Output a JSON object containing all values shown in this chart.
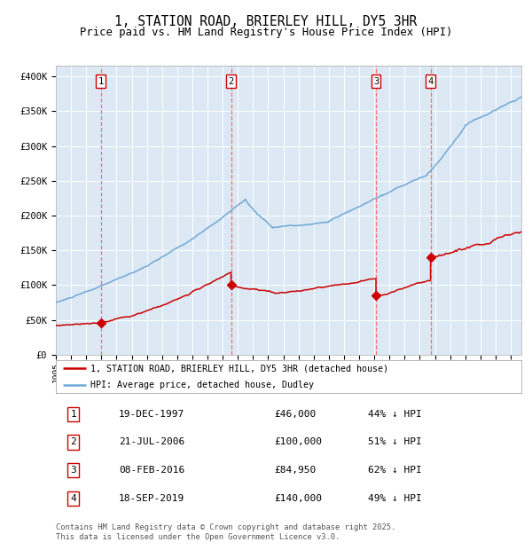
{
  "title": "1, STATION ROAD, BRIERLEY HILL, DY5 3HR",
  "subtitle": "Price paid vs. HM Land Registry's House Price Index (HPI)",
  "ylabel_ticks": [
    "£0",
    "£50K",
    "£100K",
    "£150K",
    "£200K",
    "£250K",
    "£300K",
    "£350K",
    "£400K"
  ],
  "ytick_vals": [
    0,
    50000,
    100000,
    150000,
    200000,
    250000,
    300000,
    350000,
    400000
  ],
  "ylim": [
    0,
    415000
  ],
  "plot_bg_color": "#dce9f5",
  "hpi_line_color": "#6fa8d6",
  "price_line_color": "#cc0000",
  "marker_color": "#cc0000",
  "vline_color": "#ff5555",
  "legend_label_red": "1, STATION ROAD, BRIERLEY HILL, DY5 3HR (detached house)",
  "legend_label_blue": "HPI: Average price, detached house, Dudley",
  "transactions": [
    {
      "num": 1,
      "date_label": "19-DEC-1997",
      "price": 46000,
      "pct": "44%",
      "x_year": 1997.97
    },
    {
      "num": 2,
      "date_label": "21-JUL-2006",
      "price": 100000,
      "pct": "51%",
      "x_year": 2006.55
    },
    {
      "num": 3,
      "date_label": "08-FEB-2016",
      "price": 84950,
      "pct": "62%",
      "x_year": 2016.11
    },
    {
      "num": 4,
      "date_label": "18-SEP-2019",
      "price": 140000,
      "pct": "49%",
      "x_year": 2019.71
    }
  ],
  "table_rows": [
    [
      "1",
      "19-DEC-1997",
      "£46,000",
      "44% ↓ HPI"
    ],
    [
      "2",
      "21-JUL-2006",
      "£100,000",
      "51% ↓ HPI"
    ],
    [
      "3",
      "08-FEB-2016",
      "£84,950",
      "62% ↓ HPI"
    ],
    [
      "4",
      "18-SEP-2019",
      "£140,000",
      "49% ↓ HPI"
    ]
  ],
  "footer": "Contains HM Land Registry data © Crown copyright and database right 2025.\nThis data is licensed under the Open Government Licence v3.0.",
  "xlim_start": 1995.0,
  "xlim_end": 2025.7
}
